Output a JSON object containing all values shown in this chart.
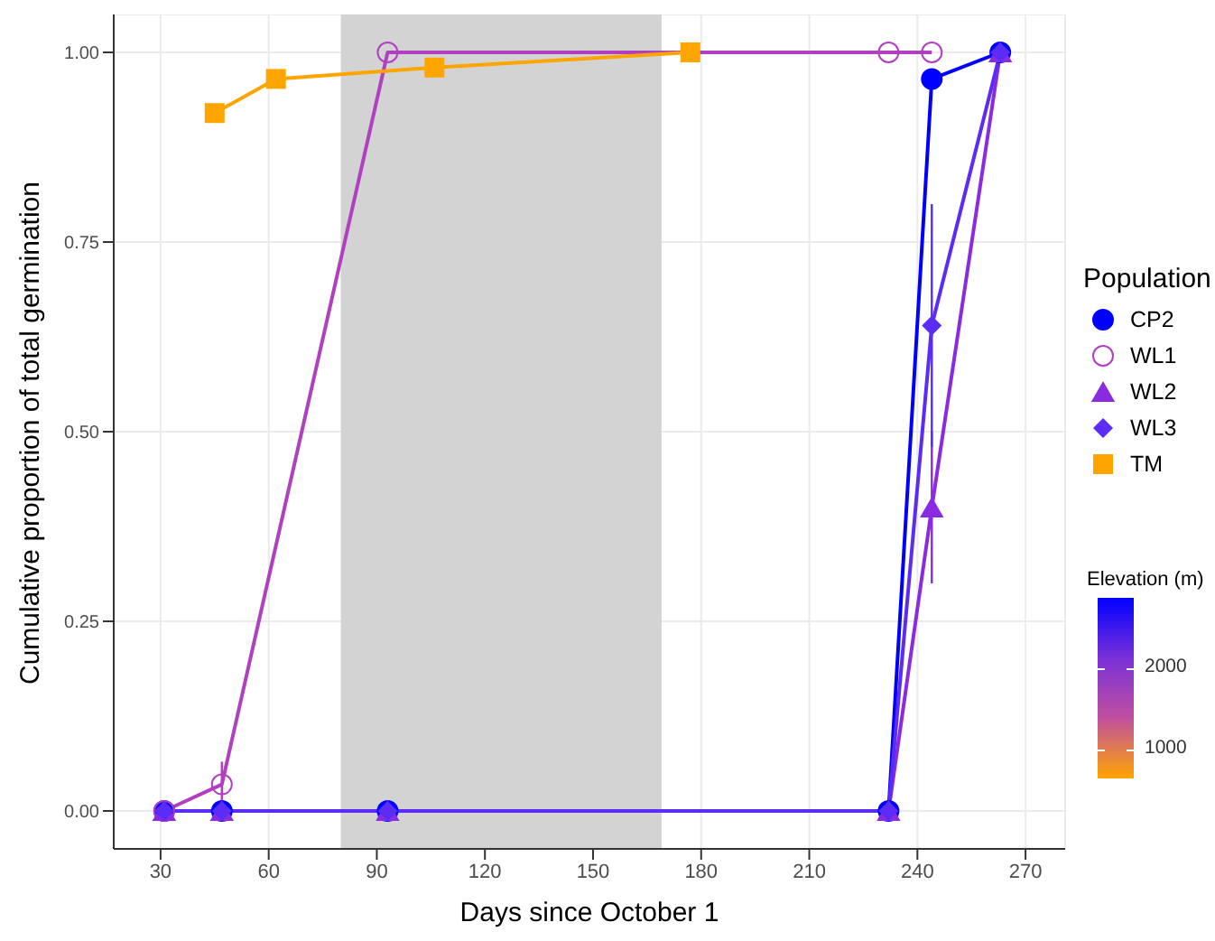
{
  "chart_data": {
    "type": "line",
    "xlabel": "Days since October 1",
    "ylabel": "Cumulative proportion  of total germination",
    "legend_title": "Population",
    "clabel": "Elevation (m)",
    "clim": [
      650,
      2850
    ],
    "cticks": [
      1000,
      2000
    ],
    "xlim": [
      17,
      281
    ],
    "xticks": [
      30,
      60,
      90,
      120,
      150,
      180,
      210,
      240,
      270
    ],
    "ylim": [
      -0.05,
      1.05
    ],
    "yticks": [
      {
        "value": 0,
        "label": "0.00"
      },
      {
        "value": 0.25,
        "label": "0.25"
      },
      {
        "value": 0.5,
        "label": "0.50"
      },
      {
        "value": 0.75,
        "label": "0.75"
      },
      {
        "value": 1,
        "label": "1.00"
      }
    ],
    "grid": true,
    "legend": "right",
    "bands": [
      {
        "axis": "x",
        "from": 80,
        "to": 169,
        "color": "#d3d3d3"
      }
    ],
    "series": [
      {
        "name": "CP2",
        "color": "#0000ff",
        "marker": "circle",
        "x": [
          31,
          47,
          93,
          232,
          244,
          263
        ],
        "values": [
          0,
          0,
          0,
          0,
          0.965,
          1
        ]
      },
      {
        "name": "WL1",
        "color": "#b040c0",
        "marker": "circle-open",
        "x": [
          31,
          47,
          93,
          232,
          244
        ],
        "values": [
          0,
          0.035,
          1,
          1,
          1
        ],
        "errors": [
          null,
          0.03,
          null,
          null,
          null
        ]
      },
      {
        "name": "WL2",
        "color": "#8a2be2",
        "marker": "triangle",
        "x": [
          31,
          47,
          93,
          232,
          244,
          263
        ],
        "values": [
          0,
          0,
          0,
          0,
          0.4,
          1
        ],
        "errors": [
          null,
          null,
          null,
          null,
          [
            0.3,
            0.5
          ],
          null
        ]
      },
      {
        "name": "WL3",
        "color": "#5a2cf5",
        "marker": "diamond",
        "x": [
          31,
          47,
          93,
          232,
          244,
          263
        ],
        "values": [
          0,
          0,
          0,
          0,
          0.64,
          1
        ],
        "errors": [
          null,
          null,
          null,
          null,
          [
            0.48,
            0.8
          ],
          null
        ]
      },
      {
        "name": "TM",
        "color": "#ffa500",
        "marker": "square",
        "x": [
          45,
          62,
          106,
          177
        ],
        "values": [
          0.92,
          0.965,
          0.98,
          1
        ]
      }
    ]
  }
}
